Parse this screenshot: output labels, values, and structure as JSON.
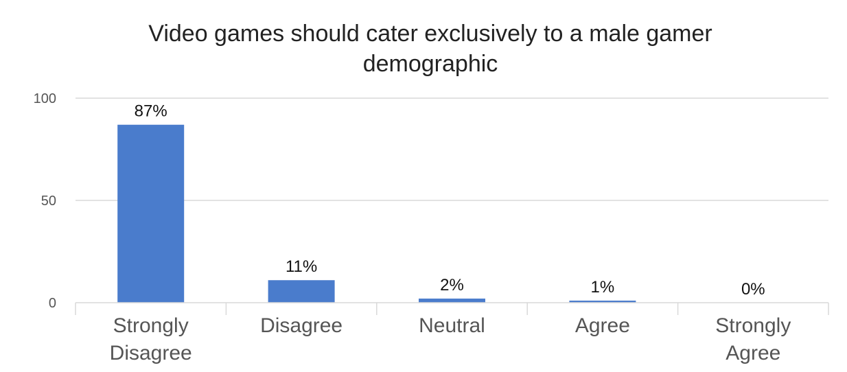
{
  "chart_data": {
    "type": "bar",
    "title_lines": [
      "Video games should cater exclusively to a male gamer",
      "demographic"
    ],
    "categories": [
      [
        "Strongly",
        "Disagree"
      ],
      [
        "Disagree"
      ],
      [
        "Neutral"
      ],
      [
        "Agree"
      ],
      [
        "Strongly",
        "Agree"
      ]
    ],
    "values": [
      87,
      11,
      2,
      1,
      0
    ],
    "data_labels": [
      "87%",
      "11%",
      "2%",
      "1%",
      "0%"
    ],
    "ylim": [
      0,
      100
    ],
    "yticks": [
      0,
      50,
      100
    ],
    "grid": true,
    "bar_color": "#4a7ccc",
    "xlabel": "",
    "ylabel": ""
  }
}
